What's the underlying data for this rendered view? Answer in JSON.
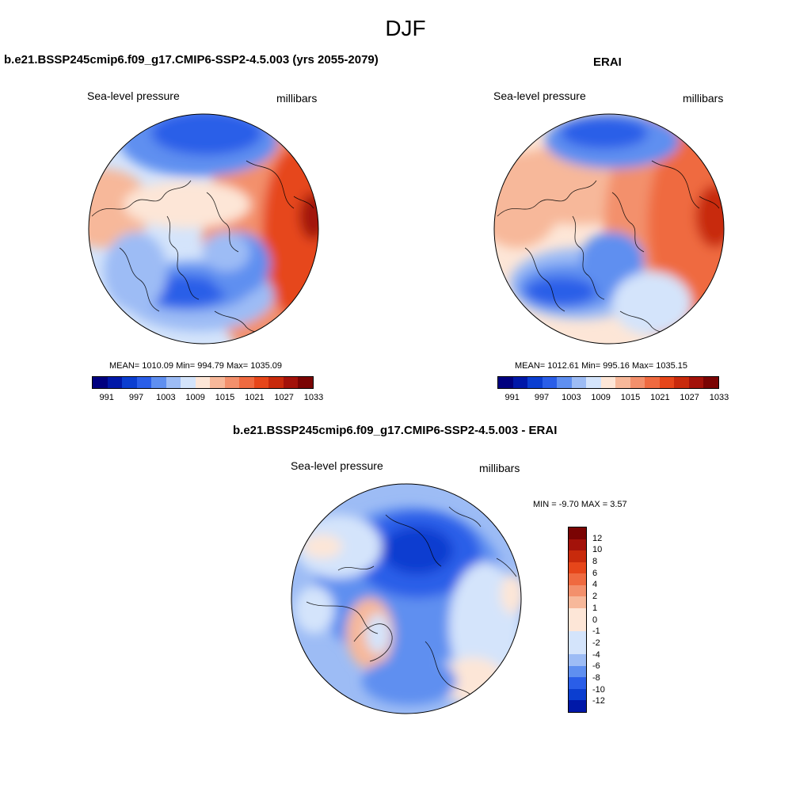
{
  "figure": {
    "title": "DJF"
  },
  "panel_left": {
    "title": "b.e21.BSSP245cmip6.f09_g17.CMIP6-SSP2-4.5.003 (yrs 2055-2079)",
    "variable": "Sea-level pressure",
    "units": "millibars",
    "stats": "MEAN= 1010.09  Min= 994.79  Max= 1035.09"
  },
  "panel_right": {
    "title": "ERAI",
    "variable": "Sea-level pressure",
    "units": "millibars",
    "stats": "MEAN= 1012.61  Min= 995.16  Max= 1035.15"
  },
  "panel_diff": {
    "title": "b.e21.BSSP245cmip6.f09_g17.CMIP6-SSP2-4.5.003 - ERAI",
    "variable": "Sea-level pressure",
    "units": "millibars",
    "stats": "MIN =  -9.70 MAX =   3.57"
  },
  "colorbar_slp": {
    "labels": [
      "991",
      "997",
      "1003",
      "1009",
      "1015",
      "1021",
      "1027",
      "1033"
    ],
    "colors": [
      "#00007f",
      "#0018a8",
      "#0b3ed0",
      "#2a5ee8",
      "#5f8ff0",
      "#9dbcf5",
      "#d4e4fb",
      "#fde6d7",
      "#f7b89a",
      "#f3906c",
      "#ef6a40",
      "#e6461a",
      "#c82a0c",
      "#a3120a",
      "#7a0403"
    ]
  },
  "colorbar_diff": {
    "labels": [
      "12",
      "10",
      "8",
      "6",
      "4",
      "2",
      "1",
      "0",
      "-1",
      "-2",
      "-4",
      "-6",
      "-8",
      "-10",
      "-12"
    ],
    "colors": [
      "#7a0403",
      "#a3120a",
      "#c82a0c",
      "#e6461a",
      "#ef6a40",
      "#f3906c",
      "#f7b89a",
      "#fde6d7",
      "#d4e4fb",
      "#9dbcf5",
      "#5f8ff0",
      "#2a5ee8",
      "#0b3ed0",
      "#0018a8",
      "#00007f"
    ]
  }
}
